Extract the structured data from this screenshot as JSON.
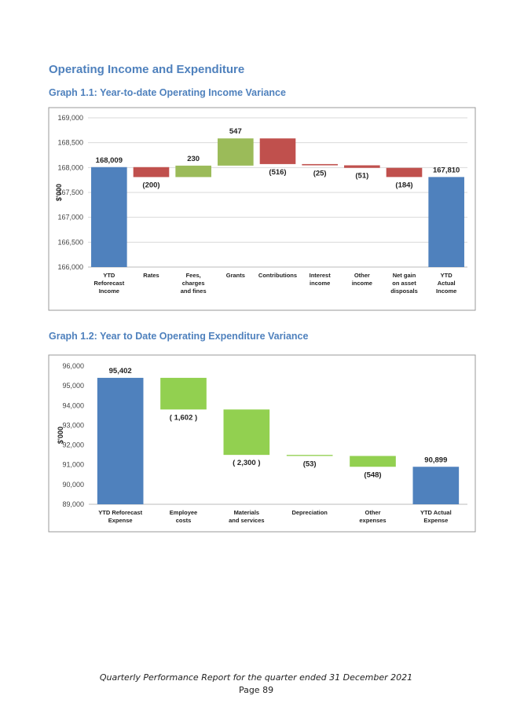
{
  "heading": "Operating Income and Expenditure",
  "chart_data": [
    {
      "type": "waterfall",
      "title": "Graph 1.1:  Year-to-date Operating Income Variance",
      "y_label": "$'000",
      "categories": [
        "YTD\nReforecast\nIncome",
        "Rates",
        "Fees,\ncharges\nand fines",
        "Grants",
        "Contributions",
        "Interest\nincome",
        "Other\nincome",
        "Net gain\non asset\ndisposals",
        "YTD\nActual\nIncome"
      ],
      "values": [
        168009,
        -200,
        230,
        547,
        -516,
        -25,
        -51,
        -184,
        167810
      ],
      "value_labels": [
        "168,009",
        "(200)",
        "230",
        "547",
        "(516)",
        "(25)",
        "(51)",
        "(184)",
        "167,810"
      ],
      "total_color": "#4f81bd",
      "increase_color": "#9bbb59",
      "decrease_color": "#c0504d",
      "ylim": [
        166000,
        169000
      ],
      "yticks": [
        {
          "value": 166000,
          "label": "166,000"
        },
        {
          "value": 166500,
          "label": "166,500"
        },
        {
          "value": 167000,
          "label": "167,000"
        },
        {
          "value": 167500,
          "label": "167,500"
        },
        {
          "value": 168000,
          "label": "168,000"
        },
        {
          "value": 168500,
          "label": "168,500"
        },
        {
          "value": 169000,
          "label": "169,000"
        }
      ],
      "grid": true
    },
    {
      "type": "waterfall",
      "title": "Graph 1.2:  Year to Date Operating Expenditure Variance",
      "y_label": "$'000",
      "categories": [
        "YTD Reforecast\nExpense",
        "Employee\ncosts",
        "Materials\nand services",
        "Depreciation",
        "Other\nexpenses",
        "YTD Actual\nExpense"
      ],
      "values": [
        95402,
        -1602,
        -2300,
        -53,
        -548,
        90899
      ],
      "value_labels": [
        "95,402",
        "( 1,602 )",
        "( 2,300 )",
        "(53)",
        "(548)",
        "90,899"
      ],
      "total_color": "#4f81bd",
      "decrease_color": "#92d050",
      "ylim": [
        89000,
        96000
      ],
      "yticks": [
        {
          "value": 89000,
          "label": "89,000"
        },
        {
          "value": 90000,
          "label": "90,000"
        },
        {
          "value": 91000,
          "label": "91,000"
        },
        {
          "value": 92000,
          "label": "92,000"
        },
        {
          "value": 93000,
          "label": "93,000"
        },
        {
          "value": 94000,
          "label": "94,000"
        },
        {
          "value": 95000,
          "label": "95,000"
        },
        {
          "value": 96000,
          "label": "96,000"
        }
      ],
      "grid": false
    }
  ],
  "footer": {
    "line1": "Quarterly Performance Report for the quarter ended 31 December 2021",
    "line2": "Page 89"
  }
}
